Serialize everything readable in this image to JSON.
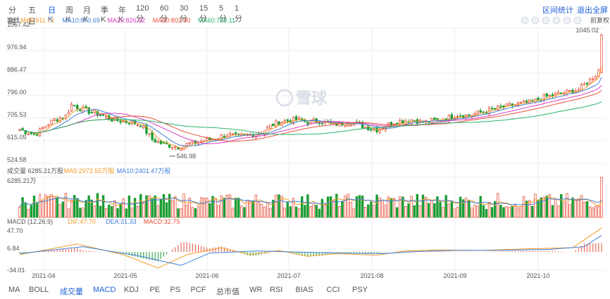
{
  "periods": [
    "分时",
    "五日",
    "日K",
    "周K",
    "月K",
    "季K",
    "年K",
    "120分",
    "60分",
    "30分",
    "15分",
    "5分",
    "1分"
  ],
  "active_period": "日K",
  "header_links": {
    "range_stats": "区间统计",
    "fullscreen": "退出全屏"
  },
  "fq_label": "前复权",
  "legend_ma": {
    "title": "均线",
    "items": [
      {
        "label": "MA5:911.72",
        "color": "#f29b27"
      },
      {
        "label": "MA10:870.69",
        "color": "#3f7fd8"
      },
      {
        "label": "MA20:826.62",
        "color": "#d83fc0"
      },
      {
        "label": "MA30:803.00",
        "color": "#e8503a"
      },
      {
        "label": "MA60:759.11",
        "color": "#28b36c"
      }
    ]
  },
  "legend_vol": {
    "title": "成交量 6285.21万股",
    "items": [
      {
        "label": "MA5:2972.55万股",
        "color": "#f29b27"
      },
      {
        "label": "MA10:2401.47万股",
        "color": "#3f7fd8"
      }
    ]
  },
  "legend_macd": {
    "title": "MACD (12,26,9)",
    "items": [
      {
        "label": "DIF:47.70",
        "color": "#f29b27"
      },
      {
        "label": "DEA:31.33",
        "color": "#3f7fd8"
      },
      {
        "label": "MACD:32.75",
        "color": "#e8503a"
      }
    ]
  },
  "watermark": "雪球",
  "bottom_tabs": [
    "MA",
    "BOLL",
    "成交量",
    "MACD",
    "KDJ",
    "PE",
    "PS",
    "PCF",
    "总市值",
    "WR",
    "RSI",
    "BIAS",
    "CCI",
    "PSY"
  ],
  "active_bottom": [
    "成交量",
    "MACD"
  ],
  "colors": {
    "up": "#e8503a",
    "down": "#1a9c32",
    "grid": "#eeeeee",
    "axis_text": "#555555",
    "accent": "#1e5fd8"
  },
  "chart_data": {
    "type": "candlestick",
    "x_ticks": [
      "2021-04",
      "2021-05",
      "2021-06",
      "2021-07",
      "2021-08",
      "2021-09",
      "2021-10"
    ],
    "price_axis": {
      "ticks": [
        1067.42,
        976.94,
        886.47,
        796.0,
        705.53,
        615.05,
        524.58
      ],
      "ylim": [
        524.58,
        1067.42
      ]
    },
    "annotations": {
      "high": "1045.02",
      "low": "546.98"
    },
    "volume_axis": {
      "max_label": "6285.21万",
      "max": 6285.21,
      "unit": "万股"
    },
    "macd_axis": {
      "ticks": [
        47.7,
        6.84,
        -34.01
      ],
      "ylim": [
        -34.01,
        47.7
      ]
    },
    "waypoints": [
      [
        0,
        660
      ],
      [
        5,
        640
      ],
      [
        12,
        700
      ],
      [
        16,
        715
      ],
      [
        18,
        760
      ],
      [
        22,
        740
      ],
      [
        28,
        720
      ],
      [
        32,
        700
      ],
      [
        38,
        690
      ],
      [
        42,
        680
      ],
      [
        46,
        620
      ],
      [
        50,
        600
      ],
      [
        55,
        590
      ],
      [
        58,
        600
      ],
      [
        62,
        610
      ],
      [
        68,
        625
      ],
      [
        72,
        640
      ],
      [
        76,
        630
      ],
      [
        80,
        640
      ],
      [
        84,
        650
      ],
      [
        88,
        680
      ],
      [
        90,
        690
      ],
      [
        96,
        700
      ],
      [
        100,
        690
      ],
      [
        104,
        695
      ],
      [
        108,
        680
      ],
      [
        112,
        685
      ],
      [
        115,
        690
      ],
      [
        120,
        670
      ],
      [
        124,
        660
      ],
      [
        130,
        690
      ],
      [
        136,
        700
      ],
      [
        140,
        690
      ],
      [
        144,
        695
      ],
      [
        148,
        705
      ],
      [
        152,
        720
      ],
      [
        156,
        715
      ],
      [
        160,
        730
      ],
      [
        166,
        745
      ],
      [
        172,
        760
      ],
      [
        178,
        770
      ],
      [
        182,
        790
      ],
      [
        186,
        800
      ],
      [
        190,
        810
      ],
      [
        194,
        820
      ],
      [
        196,
        840
      ],
      [
        198,
        860
      ],
      [
        200,
        880
      ],
      [
        201,
        900
      ],
      [
        202,
        1040
      ]
    ],
    "macd_segments": [
      [
        0,
        -5
      ],
      [
        20,
        15
      ],
      [
        36,
        -5
      ],
      [
        48,
        -30
      ],
      [
        58,
        -5
      ],
      [
        70,
        8
      ],
      [
        80,
        -5
      ],
      [
        90,
        3
      ],
      [
        100,
        -8
      ],
      [
        110,
        -3
      ],
      [
        124,
        -6
      ],
      [
        134,
        2
      ],
      [
        146,
        4
      ],
      [
        160,
        3
      ],
      [
        176,
        6
      ],
      [
        192,
        8
      ],
      [
        202,
        45
      ]
    ],
    "dea_segments": [
      [
        0,
        -3
      ],
      [
        22,
        10
      ],
      [
        42,
        -8
      ],
      [
        56,
        -25
      ],
      [
        66,
        -2
      ],
      [
        82,
        2
      ],
      [
        96,
        0
      ],
      [
        110,
        -2
      ],
      [
        126,
        -3
      ],
      [
        138,
        1
      ],
      [
        150,
        3
      ],
      [
        166,
        3
      ],
      [
        184,
        5
      ],
      [
        196,
        10
      ],
      [
        202,
        31
      ]
    ]
  }
}
